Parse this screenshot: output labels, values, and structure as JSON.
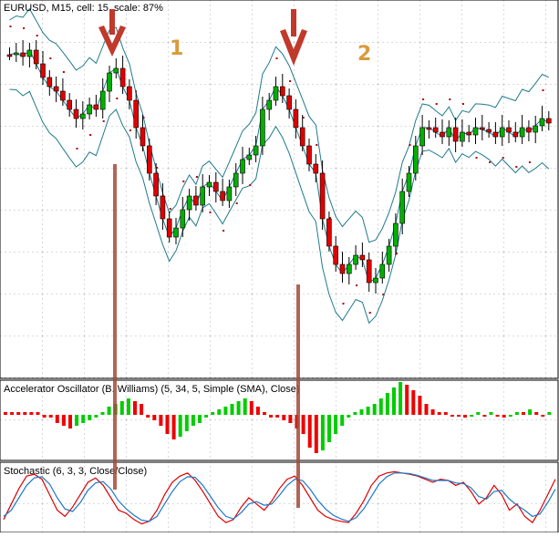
{
  "chart_data": [
    {
      "type": "candlestick",
      "title": "EURUSD, M15, cell: 15, scale: 87%",
      "annotations": [
        "1",
        "2"
      ],
      "markers": [
        "arrow-down",
        "arrow-down"
      ],
      "series": [
        {
          "name": "bullish_candles"
        },
        {
          "name": "bearish_candles"
        },
        {
          "name": "bollinger_bands"
        },
        {
          "name": "parabolic_sar"
        }
      ],
      "grid": true
    },
    {
      "type": "bar",
      "title": "Accelerator Oscillator (B. Williams) (5, 34, 5, Simple (SMA), Close)",
      "values": [
        1,
        1,
        1,
        1,
        1,
        1,
        -1,
        -1,
        -3,
        -4,
        -5,
        -4,
        -3,
        -2,
        -1,
        1,
        3,
        4,
        5,
        6,
        5,
        4,
        -1,
        -2,
        -4,
        -7,
        -9,
        -8,
        -6,
        -4,
        -3,
        -1,
        1,
        2,
        3,
        4,
        5,
        6,
        5,
        3,
        1,
        -1,
        -1,
        -2,
        -3,
        -5,
        -7,
        -12,
        -14,
        -13,
        -10,
        -7,
        -4,
        -1,
        1,
        2,
        3,
        4,
        6,
        8,
        10,
        12,
        11,
        9,
        7,
        4,
        2,
        1,
        1,
        0,
        0,
        -1,
        0,
        1,
        0,
        1,
        0,
        -1,
        0,
        1,
        1,
        2,
        1,
        0,
        1
      ],
      "colors": {
        "positive": "#00cc00",
        "negative": "#ee0000"
      },
      "grid": true
    },
    {
      "type": "line",
      "title": "Stochastic (6, 3, 3, Close/Close)",
      "series": [
        {
          "values": [
            15,
            40,
            65,
            85,
            88,
            80,
            55,
            30,
            20,
            35,
            55,
            75,
            82,
            70,
            50,
            30,
            25,
            15,
            8,
            12,
            30,
            55,
            75,
            85,
            90,
            78,
            60,
            40,
            20,
            10,
            15,
            35,
            50,
            40,
            30,
            45,
            65,
            80,
            85,
            70,
            50,
            30,
            20,
            15,
            12,
            10,
            25,
            45,
            70,
            85,
            90,
            92,
            90,
            88,
            85,
            80,
            75,
            80,
            78,
            70,
            75,
            60,
            40,
            50,
            70,
            55,
            30,
            40,
            20,
            10,
            30,
            55,
            80
          ]
        },
        {
          "values": [
            20,
            30,
            50,
            70,
            82,
            84,
            72,
            50,
            32,
            28,
            42,
            62,
            74,
            76,
            64,
            45,
            32,
            22,
            14,
            12,
            20,
            40,
            60,
            76,
            84,
            83,
            70,
            52,
            34,
            20,
            16,
            26,
            40,
            44,
            38,
            40,
            54,
            70,
            80,
            78,
            64,
            46,
            32,
            22,
            16,
            12,
            18,
            32,
            52,
            72,
            84,
            90,
            90,
            89,
            86,
            82,
            78,
            78,
            78,
            74,
            73,
            66,
            52,
            48,
            60,
            62,
            48,
            38,
            30,
            20,
            24,
            42,
            64
          ]
        }
      ],
      "colors": {
        "red": "#dd0000",
        "blue": "#1e78c8"
      },
      "grid": true
    }
  ]
}
